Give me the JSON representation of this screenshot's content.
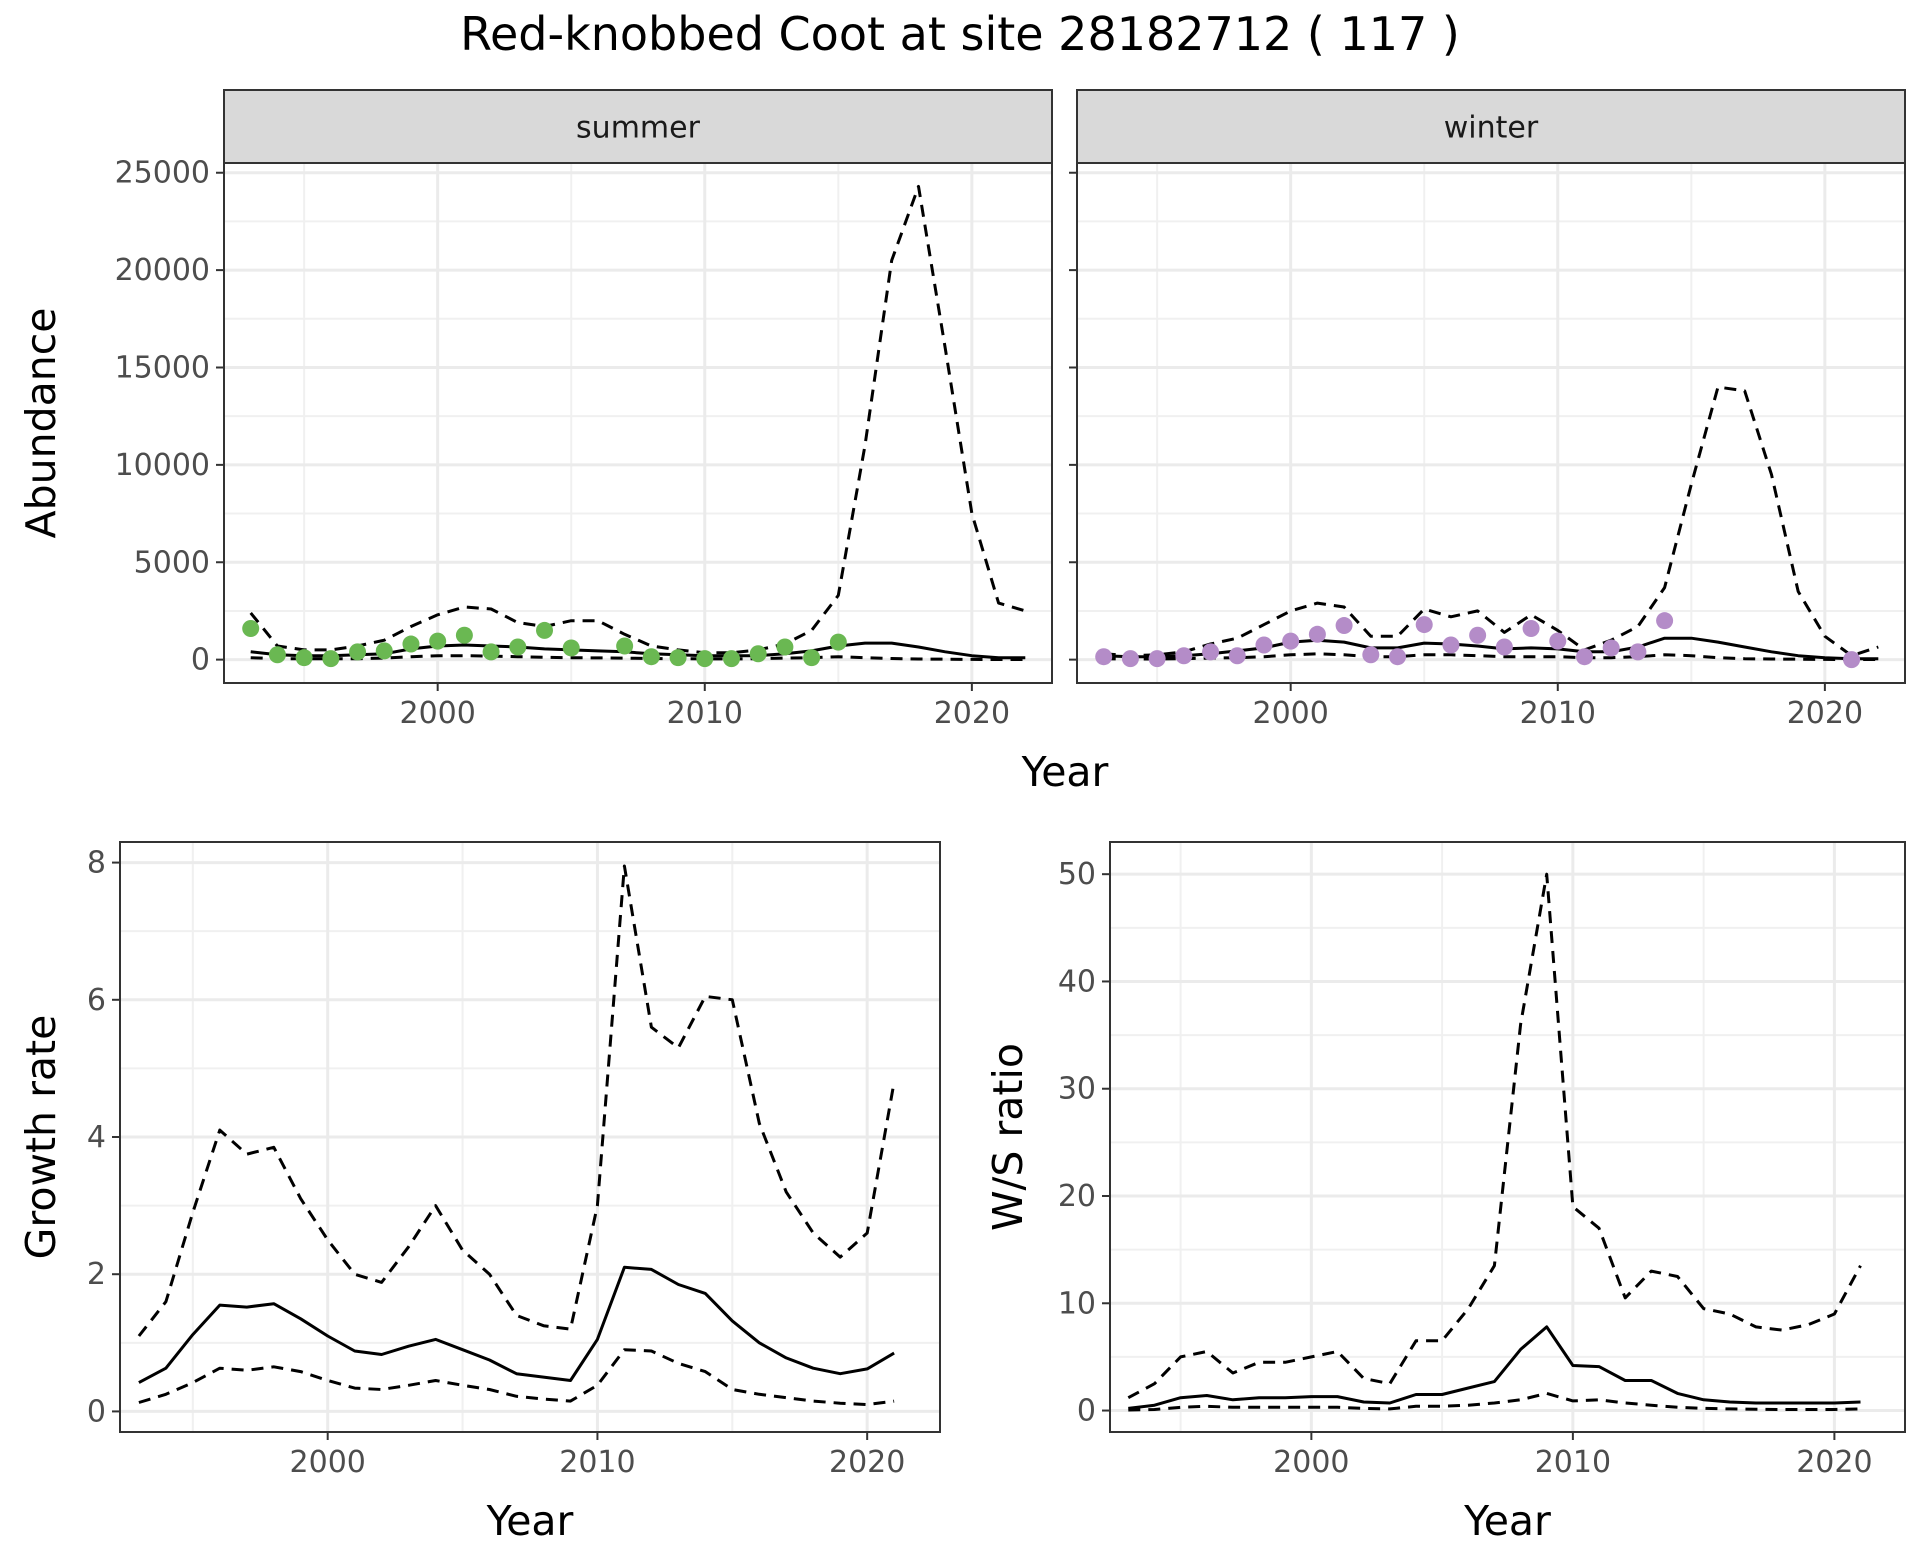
{
  "title": "Red-knobbed Coot at site 28182712 ( 117 )",
  "colors": {
    "summer_points": "#6ab852",
    "winter_points": "#b48cc8",
    "strip_fill": "#d9d9d9",
    "line": "#000000"
  },
  "chart_data": [
    {
      "type": "line",
      "panel": "summer",
      "strip_label": "summer",
      "xlabel": "Year",
      "ylabel": "Abundance",
      "xlim": [
        1992,
        2023
      ],
      "ylim": [
        -1200,
        25500
      ],
      "x_ticks": [
        2000,
        2010,
        2020
      ],
      "y_ticks": [
        0,
        5000,
        10000,
        15000,
        20000,
        25000
      ],
      "x": [
        1993,
        1994,
        1995,
        1996,
        1997,
        1998,
        1999,
        2000,
        2001,
        2002,
        2003,
        2004,
        2005,
        2006,
        2007,
        2008,
        2009,
        2010,
        2011,
        2012,
        2013,
        2014,
        2015,
        2016,
        2017,
        2018,
        2019,
        2020,
        2021,
        2022
      ],
      "series": [
        {
          "style": "solid",
          "values": [
            400,
            250,
            200,
            200,
            250,
            300,
            550,
            700,
            750,
            700,
            650,
            550,
            500,
            450,
            400,
            300,
            250,
            200,
            200,
            200,
            300,
            450,
            700,
            850,
            850,
            650,
            400,
            200,
            100,
            100
          ]
        },
        {
          "style": "dashed",
          "values": [
            2400,
            700,
            500,
            500,
            700,
            1000,
            1700,
            2300,
            2700,
            2600,
            1900,
            1700,
            2000,
            2000,
            1300,
            700,
            500,
            350,
            350,
            500,
            800,
            1500,
            3300,
            11000,
            20500,
            24300,
            16000,
            7500,
            2900,
            2500
          ]
        },
        {
          "style": "dashed",
          "values": [
            100,
            50,
            50,
            50,
            50,
            80,
            150,
            200,
            200,
            180,
            150,
            120,
            100,
            90,
            80,
            60,
            50,
            40,
            40,
            50,
            80,
            100,
            150,
            100,
            60,
            30,
            20,
            10,
            5,
            5
          ]
        }
      ],
      "points": {
        "x": [
          1993,
          1994,
          1995,
          1996,
          1997,
          1998,
          1999,
          2000,
          2001,
          2002,
          2003,
          2004,
          2005,
          2007,
          2008,
          2009,
          2010,
          2011,
          2012,
          2013,
          2014,
          2015
        ],
        "y": [
          1600,
          250,
          100,
          50,
          400,
          450,
          800,
          950,
          1250,
          400,
          650,
          1500,
          600,
          700,
          150,
          100,
          50,
          50,
          300,
          650,
          100,
          900
        ]
      }
    },
    {
      "type": "line",
      "panel": "winter",
      "strip_label": "winter",
      "xlabel": "Year",
      "ylabel": "Abundance",
      "xlim": [
        1992,
        2023
      ],
      "ylim": [
        -1200,
        25500
      ],
      "x_ticks": [
        2000,
        2010,
        2020
      ],
      "y_ticks": [
        0,
        5000,
        10000,
        15000,
        20000,
        25000
      ],
      "x": [
        1993,
        1994,
        1995,
        1996,
        1997,
        1998,
        1999,
        2000,
        2001,
        2002,
        2003,
        2004,
        2005,
        2006,
        2007,
        2008,
        2009,
        2010,
        2011,
        2012,
        2013,
        2014,
        2015,
        2016,
        2017,
        2018,
        2019,
        2020,
        2021,
        2022
      ],
      "series": [
        {
          "style": "solid",
          "values": [
            200,
            150,
            150,
            200,
            300,
            450,
            600,
            900,
            1000,
            900,
            600,
            600,
            850,
            800,
            700,
            550,
            600,
            550,
            400,
            400,
            650,
            1100,
            1100,
            900,
            650,
            400,
            200,
            100,
            50,
            50
          ]
        },
        {
          "style": "dashed",
          "values": [
            300,
            200,
            250,
            400,
            800,
            1100,
            1800,
            2500,
            2900,
            2700,
            1200,
            1200,
            2600,
            2200,
            2500,
            1400,
            2300,
            1500,
            500,
            1000,
            1700,
            3700,
            9000,
            14000,
            13800,
            9500,
            3500,
            1200,
            200,
            650
          ]
        },
        {
          "style": "dashed",
          "values": [
            50,
            30,
            30,
            50,
            80,
            100,
            150,
            250,
            300,
            250,
            150,
            150,
            250,
            250,
            200,
            150,
            150,
            150,
            100,
            100,
            150,
            250,
            200,
            100,
            50,
            30,
            20,
            10,
            5,
            5
          ]
        }
      ],
      "points": {
        "x": [
          1993,
          1994,
          1995,
          1996,
          1997,
          1998,
          1999,
          2000,
          2001,
          2002,
          2003,
          2004,
          2005,
          2006,
          2007,
          2008,
          2009,
          2010,
          2011,
          2012,
          2013,
          2014,
          2021
        ],
        "y": [
          150,
          50,
          50,
          200,
          400,
          200,
          750,
          950,
          1300,
          1750,
          250,
          150,
          1800,
          750,
          1250,
          650,
          1600,
          950,
          150,
          600,
          400,
          2000,
          0
        ]
      }
    },
    {
      "type": "line",
      "panel": "growth",
      "xlabel": "Year",
      "ylabel": "Growth rate",
      "xlim": [
        1992.3,
        2022.7
      ],
      "ylim": [
        -0.3,
        8.3
      ],
      "x_ticks": [
        2000,
        2010,
        2020
      ],
      "y_ticks": [
        0,
        2,
        4,
        6,
        8
      ],
      "x": [
        1993,
        1994,
        1995,
        1996,
        1997,
        1998,
        1999,
        2000,
        2001,
        2002,
        2003,
        2004,
        2005,
        2006,
        2007,
        2008,
        2009,
        2010,
        2011,
        2012,
        2013,
        2014,
        2015,
        2016,
        2017,
        2018,
        2019,
        2020,
        2021
      ],
      "series": [
        {
          "style": "solid",
          "values": [
            0.42,
            0.63,
            1.12,
            1.55,
            1.52,
            1.57,
            1.35,
            1.1,
            0.88,
            0.83,
            0.95,
            1.05,
            0.9,
            0.75,
            0.55,
            0.5,
            0.45,
            1.05,
            2.1,
            2.07,
            1.85,
            1.72,
            1.32,
            1.0,
            0.78,
            0.63,
            0.55,
            0.62,
            0.85
          ]
        },
        {
          "style": "dashed",
          "values": [
            1.1,
            1.6,
            2.9,
            4.1,
            3.75,
            3.85,
            3.1,
            2.5,
            2.0,
            1.88,
            2.4,
            3.0,
            2.35,
            2.0,
            1.4,
            1.25,
            1.2,
            3.0,
            7.95,
            5.6,
            5.3,
            6.05,
            6.0,
            4.2,
            3.2,
            2.6,
            2.25,
            2.6,
            4.8
          ]
        },
        {
          "style": "dashed",
          "values": [
            0.13,
            0.25,
            0.42,
            0.63,
            0.6,
            0.65,
            0.58,
            0.45,
            0.34,
            0.32,
            0.38,
            0.45,
            0.38,
            0.32,
            0.22,
            0.18,
            0.15,
            0.38,
            0.9,
            0.88,
            0.7,
            0.58,
            0.32,
            0.25,
            0.2,
            0.15,
            0.12,
            0.1,
            0.15
          ]
        }
      ]
    },
    {
      "type": "line",
      "panel": "ratio",
      "xlabel": "Year",
      "ylabel": "W/S ratio",
      "xlim": [
        1992.3,
        2022.7
      ],
      "ylim": [
        -2,
        53
      ],
      "x_ticks": [
        2000,
        2010,
        2020
      ],
      "y_ticks": [
        0,
        10,
        20,
        30,
        40,
        50
      ],
      "x": [
        1993,
        1994,
        1995,
        1996,
        1997,
        1998,
        1999,
        2000,
        2001,
        2002,
        2003,
        2004,
        2005,
        2006,
        2007,
        2008,
        2009,
        2010,
        2011,
        2012,
        2013,
        2014,
        2015,
        2016,
        2017,
        2018,
        2019,
        2020,
        2021
      ],
      "series": [
        {
          "style": "solid",
          "values": [
            0.2,
            0.5,
            1.2,
            1.4,
            1.0,
            1.2,
            1.2,
            1.3,
            1.3,
            0.8,
            0.7,
            1.5,
            1.5,
            2.1,
            2.7,
            5.7,
            7.8,
            4.2,
            4.1,
            2.8,
            2.8,
            1.6,
            1.0,
            0.8,
            0.7,
            0.7,
            0.7,
            0.7,
            0.8
          ]
        },
        {
          "style": "dashed",
          "values": [
            1.2,
            2.5,
            5.0,
            5.5,
            3.5,
            4.5,
            4.5,
            5.0,
            5.5,
            3.0,
            2.5,
            6.5,
            6.5,
            9.5,
            13.5,
            36.0,
            50.0,
            19.0,
            17.0,
            10.5,
            13.0,
            12.5,
            9.5,
            9.0,
            7.8,
            7.5,
            8.0,
            9.0,
            13.5
          ]
        },
        {
          "style": "dashed",
          "values": [
            0.05,
            0.1,
            0.3,
            0.4,
            0.3,
            0.3,
            0.3,
            0.3,
            0.3,
            0.2,
            0.15,
            0.4,
            0.4,
            0.5,
            0.7,
            1.0,
            1.6,
            0.9,
            1.0,
            0.7,
            0.5,
            0.3,
            0.2,
            0.15,
            0.12,
            0.1,
            0.1,
            0.1,
            0.15
          ]
        }
      ]
    }
  ]
}
